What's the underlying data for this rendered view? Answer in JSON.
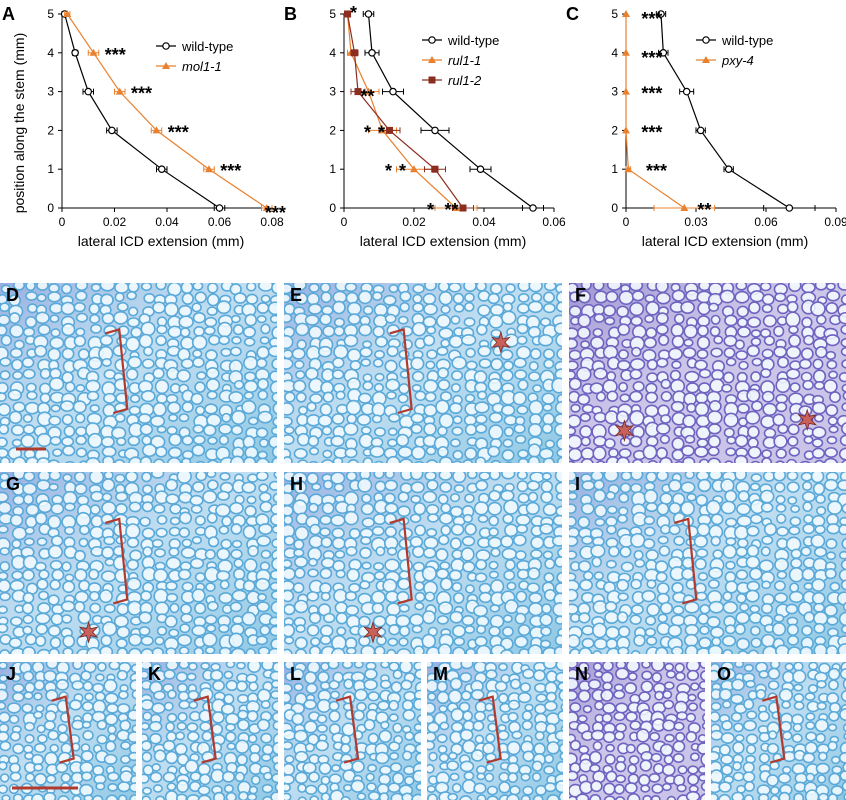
{
  "figure": {
    "colors": {
      "wild_type": "#000000",
      "mutant_orange": "#e8812f",
      "mutant_brown": "#8b2e1f",
      "bracket": "#b03a2e",
      "star_fill": "#c8615a",
      "tissue_blue": "#5aa9d8",
      "tissue_purple": "#6f63c0"
    }
  },
  "chart_data": [
    {
      "panel": "A",
      "type": "line",
      "ylabel": "position along the stem (mm)",
      "xlabel": "lateral ICD extension (mm)",
      "xlim": [
        0,
        0.08
      ],
      "ylim": [
        0,
        5
      ],
      "xticks": [
        "0",
        "0.02",
        "0.04",
        "0.06",
        "0.08"
      ],
      "yticks": [
        "0",
        "1",
        "2",
        "3",
        "4",
        "5"
      ],
      "legend_position": "top-right",
      "series": [
        {
          "name": "wild-type",
          "marker": "circle",
          "color": "#000000",
          "y": [
            5,
            4,
            3,
            2,
            1,
            0
          ],
          "x": [
            0.001,
            0.005,
            0.01,
            0.019,
            0.038,
            0.06
          ],
          "err": [
            0.001,
            0.001,
            0.002,
            0.002,
            0.002,
            0.002
          ]
        },
        {
          "name": "mol1-1",
          "marker": "triangle",
          "color": "#e8812f",
          "y": [
            5,
            4,
            3,
            2,
            1,
            0
          ],
          "x": [
            0.002,
            0.012,
            0.022,
            0.036,
            0.056,
            0.078
          ],
          "err": [
            0.001,
            0.002,
            0.002,
            0.002,
            0.002,
            0.002
          ]
        }
      ],
      "annotations": [
        {
          "y": 4,
          "x": 0.014,
          "text": "***",
          "color": "#e8812f"
        },
        {
          "y": 3,
          "x": 0.024,
          "text": "***",
          "color": "#e8812f"
        },
        {
          "y": 2,
          "x": 0.038,
          "text": "***",
          "color": "#e8812f"
        },
        {
          "y": 1,
          "x": 0.058,
          "text": "***",
          "color": "#e8812f"
        },
        {
          "y": 0,
          "x": 0.075,
          "text": "***",
          "color": "#e8812f",
          "dy": 1
        }
      ]
    },
    {
      "panel": "B",
      "type": "line",
      "ylabel": "",
      "xlabel": "lateral ICD extension (mm)",
      "xlim": [
        0,
        0.06
      ],
      "ylim": [
        0,
        5
      ],
      "xticks": [
        "0",
        "0.02",
        "0.04",
        "0.06"
      ],
      "yticks": [
        "0",
        "1",
        "2",
        "3",
        "4",
        "5"
      ],
      "legend_position": "top-right",
      "series": [
        {
          "name": "wild-type",
          "marker": "circle",
          "color": "#000000",
          "y": [
            5,
            4,
            3,
            2,
            1,
            0
          ],
          "x": [
            0.007,
            0.008,
            0.014,
            0.026,
            0.039,
            0.054
          ],
          "err": [
            0.0015,
            0.002,
            0.003,
            0.004,
            0.003,
            0.003
          ]
        },
        {
          "name": "rul1-1",
          "marker": "triangle",
          "color": "#e8812f",
          "y": [
            5,
            4,
            3,
            2,
            1,
            0
          ],
          "x": [
            0.001,
            0.002,
            0.007,
            0.011,
            0.02,
            0.032
          ],
          "err": [
            0.0005,
            0.001,
            0.003,
            0.004,
            0.005,
            0.006
          ]
        },
        {
          "name": "rul1-2",
          "marker": "square",
          "color": "#8b2e1f",
          "y": [
            5,
            4,
            3,
            2,
            1,
            0
          ],
          "x": [
            0.001,
            0.003,
            0.004,
            0.013,
            0.026,
            0.034
          ],
          "err": [
            0.0005,
            0.001,
            0.002,
            0.003,
            0.003,
            0.003
          ]
        }
      ],
      "annotations": [
        {
          "y": 5,
          "x": 0.0,
          "text": "*",
          "color": "#8b2e1f",
          "dy": -1
        },
        {
          "y": 3,
          "x": 0.003,
          "text": "*",
          "color": "#e8812f",
          "dy": 1
        },
        {
          "y": 3,
          "x": 0.005,
          "text": "*",
          "color": "#8b2e1f",
          "dy": 1
        },
        {
          "y": 2,
          "x": 0.004,
          "text": "*",
          "color": "#e8812f"
        },
        {
          "y": 2,
          "x": 0.008,
          "text": "*",
          "color": "#8b2e1f"
        },
        {
          "y": 1,
          "x": 0.01,
          "text": "*",
          "color": "#e8812f"
        },
        {
          "y": 1,
          "x": 0.014,
          "text": "*",
          "color": "#8b2e1f"
        },
        {
          "y": 0,
          "x": 0.022,
          "text": "*",
          "color": "#e8812f"
        },
        {
          "y": 0,
          "x": 0.027,
          "text": "**",
          "color": "#8b2e1f"
        }
      ]
    },
    {
      "panel": "C",
      "type": "line",
      "ylabel": "",
      "xlabel": "lateral ICD extension (mm)",
      "xlim": [
        0,
        0.09
      ],
      "ylim": [
        0,
        5
      ],
      "xticks": [
        "0",
        "0.03",
        "0.06",
        "0.09"
      ],
      "yticks": [
        "0",
        "1",
        "2",
        "3",
        "4",
        "5"
      ],
      "legend_position": "top-right",
      "series": [
        {
          "name": "wild-type",
          "marker": "circle",
          "color": "#000000",
          "y": [
            5,
            4,
            3,
            2,
            1,
            0
          ],
          "x": [
            0.015,
            0.016,
            0.026,
            0.032,
            0.044,
            0.07
          ],
          "err": [
            0.002,
            0.002,
            0.003,
            0.002,
            0.002,
            0.011
          ]
        },
        {
          "name": "pxy-4",
          "marker": "triangle",
          "color": "#e8812f",
          "y": [
            5,
            4,
            3,
            2,
            1,
            0
          ],
          "x": [
            0.0,
            0.0,
            0.0,
            0.0,
            0.001,
            0.025
          ],
          "err": [
            0.0,
            0.0,
            0.0,
            0.0,
            0.001,
            0.013
          ]
        }
      ],
      "annotations": [
        {
          "y": 5,
          "x": 0.004,
          "text": "***",
          "color": "#e8812f",
          "dy": 1
        },
        {
          "y": 4,
          "x": 0.004,
          "text": "***",
          "color": "#e8812f",
          "dy": 1
        },
        {
          "y": 3,
          "x": 0.004,
          "text": "***",
          "color": "#e8812f"
        },
        {
          "y": 2,
          "x": 0.004,
          "text": "***",
          "color": "#e8812f"
        },
        {
          "y": 1,
          "x": 0.006,
          "text": "***",
          "color": "#e8812f"
        },
        {
          "y": 0,
          "x": 0.028,
          "text": "**",
          "color": "#e8812f"
        }
      ]
    }
  ],
  "photos": [
    {
      "label": "D",
      "tone": "blue",
      "bracket": true,
      "stars": 0,
      "scale_bar": true
    },
    {
      "label": "E",
      "tone": "blue",
      "bracket": true,
      "stars": 1,
      "scale_bar": false
    },
    {
      "label": "F",
      "tone": "purple",
      "bracket": false,
      "stars": 2,
      "scale_bar": false
    },
    {
      "label": "G",
      "tone": "blue",
      "bracket": true,
      "stars": 1,
      "scale_bar": false
    },
    {
      "label": "H",
      "tone": "blue",
      "bracket": true,
      "stars": 1,
      "scale_bar": false
    },
    {
      "label": "I",
      "tone": "blue",
      "bracket": true,
      "stars": 0,
      "scale_bar": false
    },
    {
      "label": "J",
      "tone": "blue",
      "bracket": true,
      "stars": 0,
      "scale_bar": true
    },
    {
      "label": "K",
      "tone": "blue",
      "bracket": true,
      "stars": 0,
      "scale_bar": false
    },
    {
      "label": "L",
      "tone": "blue",
      "bracket": true,
      "stars": 0,
      "scale_bar": false
    },
    {
      "label": "M",
      "tone": "blue",
      "bracket": true,
      "stars": 0,
      "scale_bar": false
    },
    {
      "label": "N",
      "tone": "purple",
      "bracket": false,
      "stars": 0,
      "scale_bar": false
    },
    {
      "label": "O",
      "tone": "blue",
      "bracket": true,
      "stars": 0,
      "scale_bar": false
    }
  ]
}
